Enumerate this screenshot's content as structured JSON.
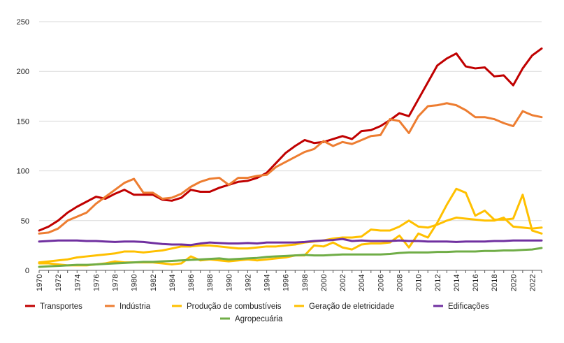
{
  "chart_data": {
    "type": "line",
    "title": "",
    "xlabel": "",
    "ylabel": "",
    "xlim": [
      1970,
      2023
    ],
    "ylim": [
      0,
      250
    ],
    "yticks": [
      0,
      50,
      100,
      150,
      200,
      250
    ],
    "xticks": [
      1970,
      1972,
      1974,
      1976,
      1978,
      1980,
      1982,
      1984,
      1986,
      1988,
      1990,
      1992,
      1994,
      1996,
      1998,
      2000,
      2002,
      2004,
      2006,
      2008,
      2010,
      2012,
      2014,
      2016,
      2018,
      2020,
      2022
    ],
    "grid": "horizontal",
    "legend_position": "bottom",
    "x": [
      1970,
      1971,
      1972,
      1973,
      1974,
      1975,
      1976,
      1977,
      1978,
      1979,
      1980,
      1981,
      1982,
      1983,
      1984,
      1985,
      1986,
      1987,
      1988,
      1989,
      1990,
      1991,
      1992,
      1993,
      1994,
      1995,
      1996,
      1997,
      1998,
      1999,
      2000,
      2001,
      2002,
      2003,
      2004,
      2005,
      2006,
      2007,
      2008,
      2009,
      2010,
      2011,
      2012,
      2013,
      2014,
      2015,
      2016,
      2017,
      2018,
      2019,
      2020,
      2021,
      2022,
      2023
    ],
    "series": [
      {
        "name": "Transportes",
        "color": "#c00000",
        "values": [
          40,
          44,
          50,
          58,
          64,
          69,
          74,
          72,
          77,
          81,
          76,
          76,
          76,
          71,
          70,
          73,
          81,
          79,
          79,
          83,
          86,
          89,
          90,
          93,
          98,
          108,
          118,
          125,
          131,
          128,
          129,
          132,
          135,
          132,
          140,
          141,
          145,
          151,
          158,
          155,
          172,
          189,
          206,
          213,
          218,
          205,
          203,
          204,
          195,
          196,
          186,
          203,
          216,
          223
        ]
      },
      {
        "name": "Indústria",
        "color": "#ed7d31",
        "values": [
          37,
          38,
          42,
          50,
          54,
          58,
          67,
          74,
          81,
          88,
          92,
          78,
          78,
          72,
          73,
          77,
          84,
          89,
          92,
          93,
          86,
          93,
          93,
          95,
          96,
          104,
          109,
          114,
          119,
          122,
          130,
          125,
          129,
          127,
          131,
          135,
          136,
          152,
          150,
          138,
          155,
          165,
          166,
          168,
          166,
          161,
          154,
          154,
          152,
          148,
          145,
          160,
          156,
          154
        ]
      },
      {
        "name": "Produção de combustíveis",
        "color": "#ffc000",
        "values": [
          8,
          9,
          10,
          11,
          13,
          14,
          15,
          16,
          17,
          19,
          19,
          18,
          19,
          20,
          22,
          24,
          24,
          25,
          25,
          24,
          23,
          22,
          22,
          23,
          24,
          24,
          25,
          26,
          28,
          29,
          30,
          32,
          33,
          33,
          34,
          41,
          40,
          40,
          44,
          50,
          44,
          43,
          46,
          50,
          53,
          52,
          51,
          50,
          50,
          53,
          44,
          43,
          42,
          43
        ]
      },
      {
        "name": "Geração de eletricidade",
        "color": "#ffc000",
        "values": [
          7,
          7,
          6,
          5,
          5,
          5,
          6,
          7,
          9,
          8,
          8,
          8,
          8,
          7,
          6,
          7,
          14,
          10,
          11,
          10,
          9,
          10,
          11,
          10,
          11,
          12,
          13,
          15,
          15,
          25,
          24,
          28,
          23,
          21,
          26,
          27,
          27,
          28,
          35,
          23,
          37,
          33,
          48,
          66,
          82,
          78,
          55,
          60,
          51,
          51,
          52,
          76,
          40,
          37
        ]
      },
      {
        "name": "Edificações",
        "color": "#7030a0",
        "values": [
          29,
          29.5,
          30,
          30,
          30,
          29.5,
          29.5,
          29,
          28.5,
          29,
          29,
          28.5,
          27.5,
          26.5,
          26,
          26,
          25.5,
          27,
          28,
          27.5,
          27,
          27,
          27.5,
          27,
          28,
          28,
          28,
          28,
          28.5,
          29.5,
          30,
          30.5,
          31.5,
          29.5,
          30,
          29.5,
          29.5,
          29.5,
          30,
          29.5,
          29.5,
          29,
          29,
          29,
          28.5,
          29,
          29,
          29,
          29.5,
          29.5,
          30,
          30,
          30,
          30
        ]
      },
      {
        "name": "Agropecuária",
        "color": "#70ad47",
        "values": [
          3.5,
          4,
          4.5,
          5,
          5.5,
          5.5,
          6,
          6.5,
          7,
          7.5,
          8,
          8.5,
          8.5,
          9,
          9.5,
          10,
          10.5,
          11,
          11.5,
          12,
          11,
          11.5,
          12,
          12.5,
          13.5,
          14,
          14.5,
          15,
          15.5,
          15,
          15,
          15.5,
          16,
          16,
          16,
          16,
          16,
          16.5,
          17.5,
          18,
          18,
          18,
          18.5,
          18.5,
          19,
          19,
          19,
          19.5,
          19.5,
          20,
          20,
          20.5,
          21,
          22.5
        ]
      }
    ]
  }
}
